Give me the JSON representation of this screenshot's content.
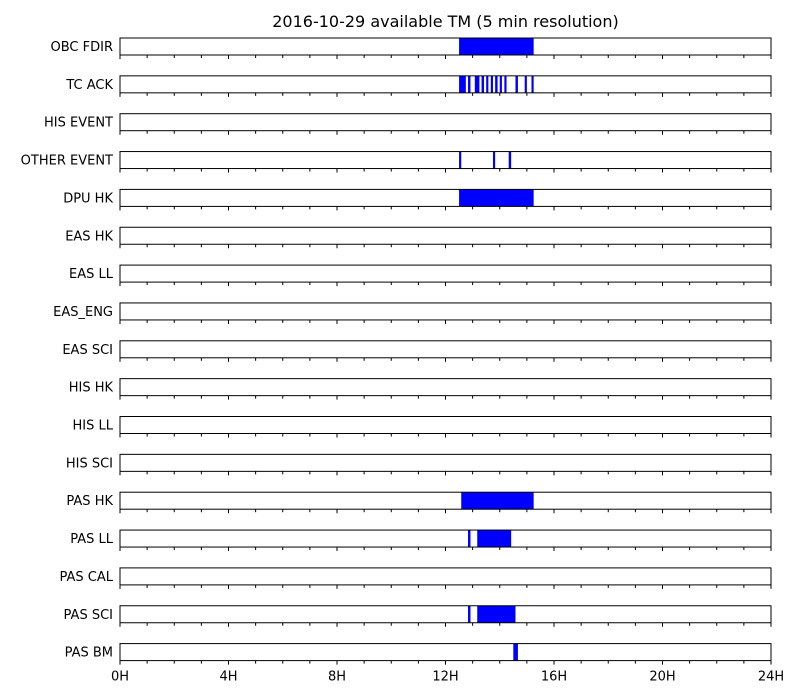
{
  "chart_data": {
    "type": "bar",
    "subtype": "timeline",
    "title": "2016-10-29 available TM (5 min resolution)",
    "xlim": [
      0,
      24
    ],
    "x_unit": "hours",
    "x_tick_values": [
      0,
      4,
      8,
      12,
      16,
      20,
      24
    ],
    "x_tick_labels": [
      "0H",
      "4H",
      "8H",
      "12H",
      "16H",
      "20H",
      "24H"
    ],
    "minor_tick_step": 1,
    "bar_color": "#0000ff",
    "rows": [
      {
        "label": "OBC FDIR",
        "intervals": [
          [
            12.5,
            15.25
          ]
        ]
      },
      {
        "label": "TC ACK",
        "intervals": [
          [
            12.5,
            12.75
          ],
          [
            12.83,
            12.92
          ],
          [
            13.08,
            13.25
          ],
          [
            13.33,
            13.42
          ],
          [
            13.5,
            13.58
          ],
          [
            13.67,
            13.75
          ],
          [
            13.83,
            13.92
          ],
          [
            14.0,
            14.08
          ],
          [
            14.17,
            14.25
          ],
          [
            14.58,
            14.67
          ],
          [
            14.92,
            15.0
          ],
          [
            15.17,
            15.25
          ]
        ]
      },
      {
        "label": "HIS EVENT",
        "intervals": []
      },
      {
        "label": "OTHER EVENT",
        "intervals": [
          [
            12.5,
            12.58
          ],
          [
            13.75,
            13.83
          ],
          [
            14.33,
            14.42
          ]
        ]
      },
      {
        "label": "DPU HK",
        "intervals": [
          [
            12.5,
            15.25
          ]
        ]
      },
      {
        "label": "EAS HK",
        "intervals": []
      },
      {
        "label": "EAS LL",
        "intervals": []
      },
      {
        "label": "EAS_ENG",
        "intervals": []
      },
      {
        "label": "EAS SCI",
        "intervals": []
      },
      {
        "label": "HIS HK",
        "intervals": []
      },
      {
        "label": "HIS LL",
        "intervals": []
      },
      {
        "label": "HIS SCI",
        "intervals": []
      },
      {
        "label": "PAS HK",
        "intervals": [
          [
            12.58,
            15.25
          ]
        ]
      },
      {
        "label": "PAS LL",
        "intervals": [
          [
            12.83,
            12.92
          ],
          [
            13.17,
            14.42
          ]
        ]
      },
      {
        "label": "PAS CAL",
        "intervals": []
      },
      {
        "label": "PAS SCI",
        "intervals": [
          [
            12.83,
            12.92
          ],
          [
            13.17,
            14.58
          ]
        ]
      },
      {
        "label": "PAS BM",
        "intervals": [
          [
            14.5,
            14.67
          ]
        ]
      }
    ]
  }
}
